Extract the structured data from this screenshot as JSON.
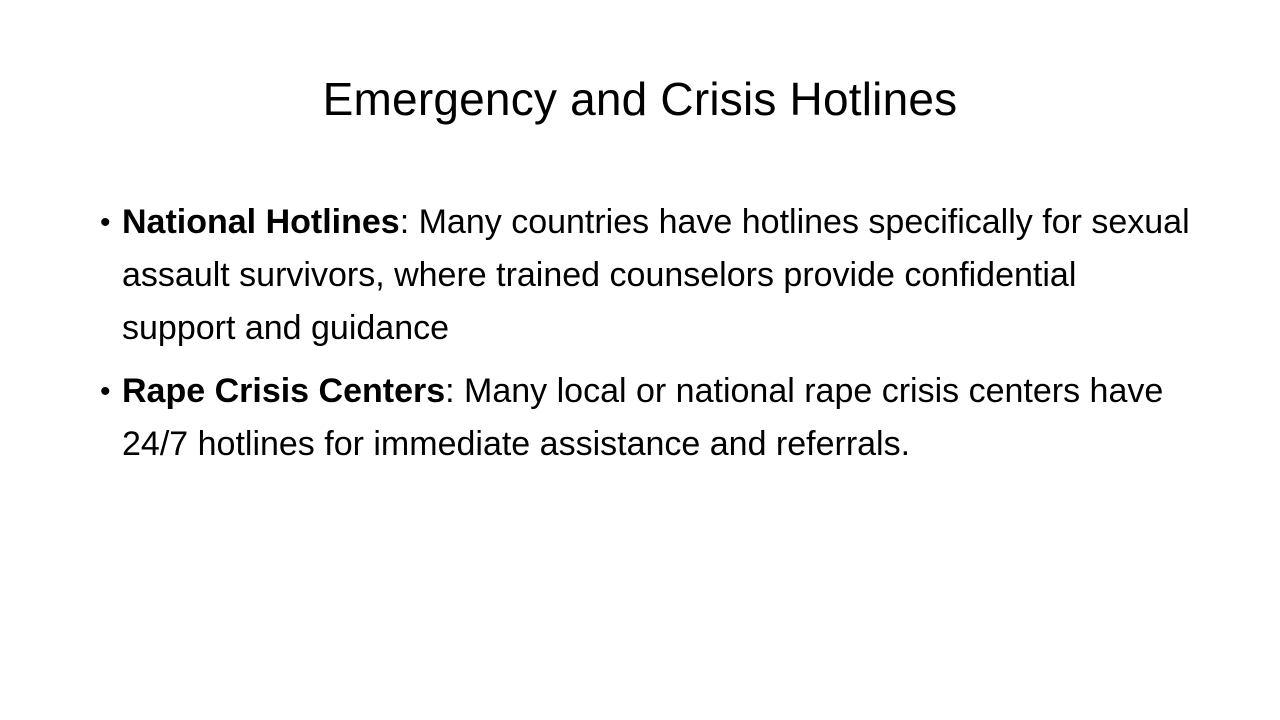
{
  "slide": {
    "title": "Emergency and Crisis Hotlines",
    "bullet_symbol": "•",
    "bullets": [
      {
        "term": "National Hotlines",
        "separator": ":",
        "text": " Many countries have hotlines specifically for sexual assault survivors, where trained counselors provide confidential support and guidance"
      },
      {
        "term": "Rape Crisis Centers",
        "separator": ":",
        "text": " Many local or national rape crisis centers have 24/7 hotlines for immediate assistance and referrals."
      }
    ]
  }
}
